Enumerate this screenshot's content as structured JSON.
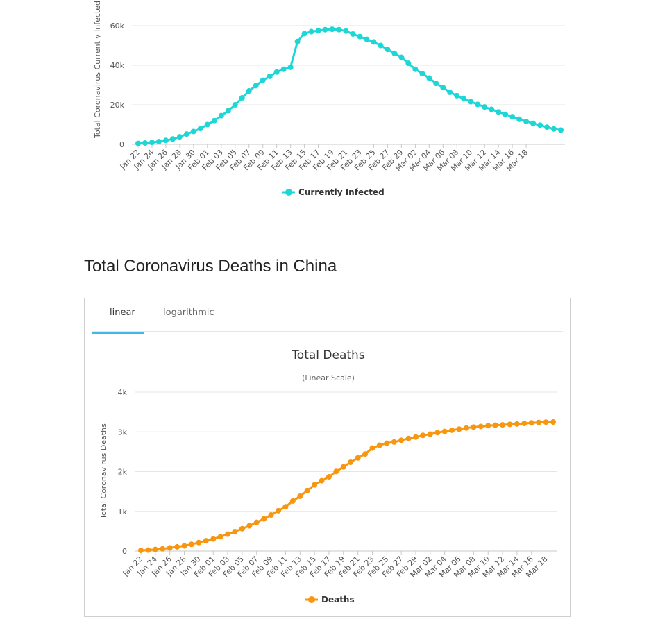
{
  "chart_data": [
    {
      "type": "line",
      "title": "",
      "ylabel": "Total Coronavirus Currently Infected",
      "xlabel": "",
      "ylim": [
        0,
        60000
      ],
      "yticks": [
        0,
        20000,
        40000,
        60000
      ],
      "ytick_labels": [
        "0",
        "20k",
        "40k",
        "60k"
      ],
      "grid": true,
      "legend_position": "bottom-center",
      "x_tick_labels": [
        "Jan 22",
        "Jan 24",
        "Jan 26",
        "Jan 28",
        "Jan 30",
        "Feb 01",
        "Feb 03",
        "Feb 05",
        "Feb 07",
        "Feb 09",
        "Feb 11",
        "Feb 13",
        "Feb 15",
        "Feb 17",
        "Feb 19",
        "Feb 21",
        "Feb 23",
        "Feb 25",
        "Feb 27",
        "Feb 29",
        "Mar 02",
        "Mar 04",
        "Mar 06",
        "Mar 08",
        "Mar 10",
        "Mar 12",
        "Mar 14",
        "Mar 16",
        "Mar 18"
      ],
      "series": [
        {
          "name": "Currently Infected",
          "color": "#1fd6d6",
          "values": [
            500,
            700,
            1000,
            1400,
            2000,
            2700,
            3800,
            5200,
            6500,
            8000,
            10000,
            12000,
            14500,
            17000,
            20000,
            23500,
            27000,
            29700,
            32400,
            34400,
            36600,
            38000,
            39000,
            52000,
            56000,
            57000,
            57500,
            58000,
            58200,
            58000,
            57300,
            55800,
            54500,
            53100,
            51800,
            50000,
            48000,
            46000,
            44000,
            41000,
            38000,
            35800,
            33500,
            30800,
            28700,
            26300,
            24600,
            23000,
            21600,
            20200,
            18900,
            17700,
            16400,
            15200,
            14000,
            12700,
            11600,
            10600,
            9700,
            8700,
            7800,
            7200
          ]
        }
      ]
    },
    {
      "type": "line",
      "title": "Total Deaths",
      "subtitle": "(Linear Scale)",
      "ylabel": "Total Coronavirus Deaths",
      "xlabel": "",
      "ylim": [
        0,
        4000
      ],
      "yticks": [
        0,
        1000,
        2000,
        3000,
        4000
      ],
      "ytick_labels": [
        "0",
        "1k",
        "2k",
        "3k",
        "4k"
      ],
      "grid": true,
      "legend_position": "bottom-center",
      "x_tick_labels": [
        "Jan 22",
        "Jan 24",
        "Jan 26",
        "Jan 28",
        "Jan 30",
        "Feb 01",
        "Feb 03",
        "Feb 05",
        "Feb 07",
        "Feb 09",
        "Feb 11",
        "Feb 13",
        "Feb 15",
        "Feb 17",
        "Feb 19",
        "Feb 21",
        "Feb 23",
        "Feb 25",
        "Feb 27",
        "Feb 29",
        "Mar 02",
        "Mar 04",
        "Mar 06",
        "Mar 08",
        "Mar 10",
        "Mar 12",
        "Mar 14",
        "Mar 16",
        "Mar 18"
      ],
      "series": [
        {
          "name": "Deaths",
          "color": "#f7960f",
          "values": [
            17,
            25,
            41,
            56,
            80,
            106,
            132,
            170,
            213,
            259,
            304,
            361,
            425,
            490,
            563,
            636,
            722,
            811,
            908,
            1016,
            1113,
            1259,
            1380,
            1523,
            1665,
            1770,
            1868,
            2004,
            2118,
            2236,
            2345,
            2442,
            2592,
            2663,
            2715,
            2744,
            2788,
            2835,
            2870,
            2912,
            2943,
            2981,
            3012,
            3042,
            3070,
            3097,
            3119,
            3136,
            3158,
            3169,
            3176,
            3189,
            3199,
            3213,
            3226,
            3237,
            3245,
            3248
          ]
        }
      ]
    }
  ],
  "section_title": "Total Coronavirus Deaths in China",
  "tabs": [
    {
      "label": "linear",
      "active": true
    },
    {
      "label": "logarithmic",
      "active": false
    }
  ],
  "colors": {
    "tab_accent": "#3fb8e8"
  }
}
